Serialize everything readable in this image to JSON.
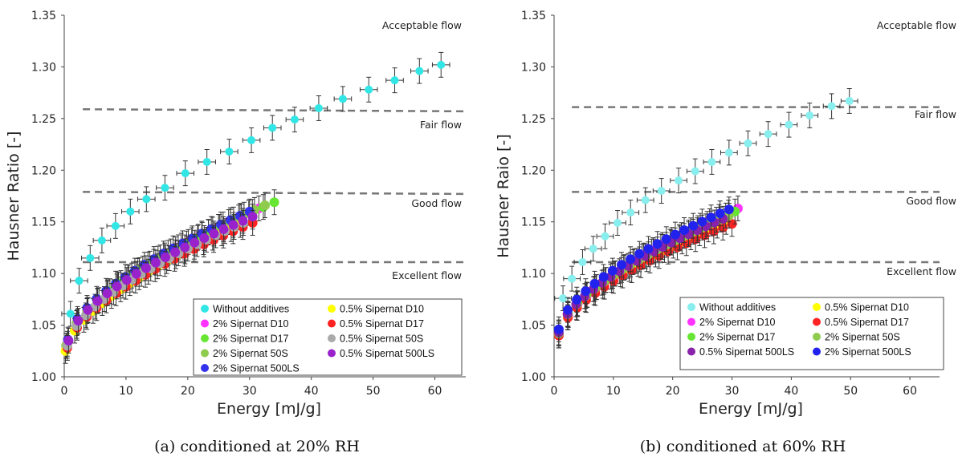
{
  "chart_data": [
    {
      "type": "scatter",
      "caption": "(a) conditioned at 20% RH",
      "xlabel": "Energy [mJ/g]",
      "ylabel": "Hausner Ratio [-]",
      "xlim": [
        0,
        65
      ],
      "ylim": [
        1.0,
        1.35
      ],
      "xticks": [
        "0",
        "10",
        "20",
        "30",
        "40",
        "50",
        "60"
      ],
      "yticks": [
        "1.00",
        "1.05",
        "1.10",
        "1.15",
        "1.20",
        "1.25",
        "1.30",
        "1.35"
      ],
      "grid": false,
      "legend_position": "bottom-right",
      "thresholds": [
        {
          "y_start": 1.259,
          "y_end": 1.257,
          "label": "Fair flow"
        },
        {
          "y_start": 1.179,
          "y_end": 1.177,
          "label": "Good flow"
        },
        {
          "y_start": 1.111,
          "y_end": 1.111,
          "label": "Excellent flow"
        }
      ],
      "top_label": "Acceptable flow",
      "series": [
        {
          "name": "Without additives",
          "color": "#33e6e6",
          "x": [
            1.0,
            2.4,
            4.2,
            6.1,
            8.3,
            10.7,
            13.3,
            16.3,
            19.6,
            23.1,
            26.7,
            30.3,
            33.7,
            37.3,
            41.2,
            45.1,
            49.3,
            53.5,
            57.5,
            61.0
          ],
          "y": [
            1.061,
            1.093,
            1.115,
            1.132,
            1.146,
            1.16,
            1.172,
            1.183,
            1.197,
            1.208,
            1.218,
            1.229,
            1.241,
            1.249,
            1.26,
            1.269,
            1.278,
            1.287,
            1.296,
            1.302
          ],
          "xerr": 1.4,
          "yerr": 0.012
        },
        {
          "name": "2% Sipernat D10",
          "color": "#ff33ff",
          "x_start": 0.5,
          "x_end": 31.5,
          "y_start": 1.032,
          "y_end": 1.163,
          "points": 20
        },
        {
          "name": "2% Sipernat D17",
          "color": "#66e633",
          "x_start": 0.3,
          "x_end": 34.0,
          "y_start": 1.03,
          "y_end": 1.169,
          "points": 20
        },
        {
          "name": "2% Sipernat 50S",
          "color": "#8fcc4d",
          "x_start": 0.3,
          "x_end": 32.5,
          "y_start": 1.03,
          "y_end": 1.166,
          "points": 20
        },
        {
          "name": "2% Sipernat 500LS",
          "color": "#3333ee",
          "x_start": 0.6,
          "x_end": 30.0,
          "y_start": 1.036,
          "y_end": 1.16,
          "points": 20
        },
        {
          "name": "0.5% Sipernat D10",
          "color": "#ffff00",
          "x_start": 0.2,
          "x_end": 28.5,
          "y_start": 1.025,
          "y_end": 1.147,
          "points": 20
        },
        {
          "name": "0.5% Sipernat D17",
          "color": "#ff2222",
          "x_start": 0.5,
          "x_end": 30.5,
          "y_start": 1.028,
          "y_end": 1.149,
          "points": 20
        },
        {
          "name": "0.5% Sipernat 50S",
          "color": "#aaaaaa",
          "x_start": 0.5,
          "x_end": 29.0,
          "y_start": 1.03,
          "y_end": 1.149,
          "points": 20
        },
        {
          "name": "0.5% Sipernat 500LS",
          "color": "#9922cc",
          "x_start": 0.7,
          "x_end": 30.5,
          "y_start": 1.035,
          "y_end": 1.155,
          "points": 20
        }
      ]
    },
    {
      "type": "scatter",
      "caption": "(b) conditioned at 60% RH",
      "xlabel": "Energy [mJ/g]",
      "ylabel": "Hausner Raio [-]",
      "xlim": [
        0,
        65
      ],
      "ylim": [
        1.0,
        1.35
      ],
      "xticks": [
        "0",
        "10",
        "20",
        "30",
        "40",
        "50",
        "60"
      ],
      "yticks": [
        "1.00",
        "1.05",
        "1.10",
        "1.15",
        "1.20",
        "1.25",
        "1.30",
        "1.35"
      ],
      "grid": false,
      "legend_position": "bottom-right",
      "thresholds": [
        {
          "y_start": 1.261,
          "y_end": 1.261,
          "label": "Fair flow"
        },
        {
          "y_start": 1.179,
          "y_end": 1.179,
          "label": "Good flow"
        },
        {
          "y_start": 1.111,
          "y_end": 1.111,
          "label": "Excellent flow"
        }
      ],
      "top_label": "Acceptable flow",
      "series": [
        {
          "name": "Without additives",
          "color": "#88eeee",
          "x": [
            1.5,
            3.0,
            4.8,
            6.6,
            8.6,
            10.7,
            12.9,
            15.4,
            18.1,
            21.0,
            23.8,
            26.6,
            29.5,
            32.7,
            36.1,
            39.6,
            43.1,
            46.8,
            49.8
          ],
          "y": [
            1.076,
            1.095,
            1.111,
            1.124,
            1.136,
            1.149,
            1.159,
            1.171,
            1.18,
            1.19,
            1.199,
            1.208,
            1.217,
            1.226,
            1.235,
            1.244,
            1.253,
            1.262,
            1.267
          ],
          "xerr": 1.4,
          "yerr": 0.012
        },
        {
          "name": "0.5% Sipernat D10",
          "color": "#ffff00",
          "x_start": 0.8,
          "x_end": 29.0,
          "y_start": 1.04,
          "y_end": 1.15,
          "points": 20
        },
        {
          "name": "2% Sipernat D10",
          "color": "#ff33ff",
          "x_start": 0.8,
          "x_end": 31.0,
          "y_start": 1.04,
          "y_end": 1.163,
          "points": 20
        },
        {
          "name": "0.5% Sipernat D17",
          "color": "#ff2222",
          "x_start": 0.8,
          "x_end": 30.0,
          "y_start": 1.04,
          "y_end": 1.148,
          "points": 20
        },
        {
          "name": "2% Sipernat D17",
          "color": "#66e633",
          "x_start": 0.8,
          "x_end": 30.5,
          "y_start": 1.042,
          "y_end": 1.16,
          "points": 20
        },
        {
          "name": "2% Sipernat 50S",
          "color": "#8fcc4d",
          "x_start": 0.8,
          "x_end": 29.5,
          "y_start": 1.042,
          "y_end": 1.156,
          "points": 20
        },
        {
          "name": "0.5% Sipernat 500LS",
          "color": "#8822aa",
          "x_start": 0.8,
          "x_end": 28.5,
          "y_start": 1.043,
          "y_end": 1.153,
          "points": 20
        },
        {
          "name": "2% Sipernat 500LS",
          "color": "#2222ee",
          "x_start": 0.8,
          "x_end": 29.5,
          "y_start": 1.046,
          "y_end": 1.162,
          "points": 20
        }
      ]
    }
  ]
}
